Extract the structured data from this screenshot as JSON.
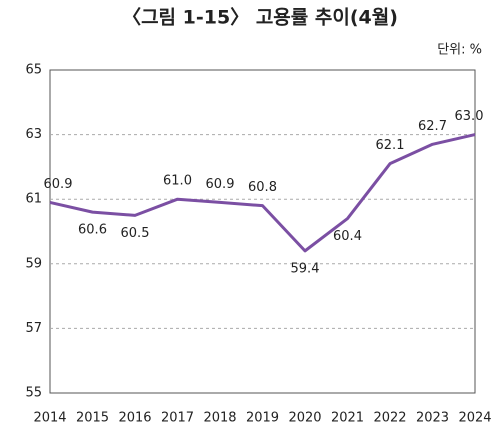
{
  "chart_data": {
    "type": "line",
    "title": "〈그림 1-15〉 고용률 추이(4월)",
    "unit": "단위: %",
    "categories": [
      "2014",
      "2015",
      "2016",
      "2017",
      "2018",
      "2019",
      "2020",
      "2021",
      "2022",
      "2023",
      "2024"
    ],
    "series": [
      {
        "name": "고용률",
        "color": "#7b4fa3",
        "values": [
          60.9,
          60.6,
          60.5,
          61.0,
          60.9,
          60.8,
          59.4,
          60.4,
          62.1,
          62.7,
          63.0
        ],
        "value_labels": [
          "60.9",
          "60.6",
          "60.5",
          "61.0",
          "60.9",
          "60.8",
          "59.4",
          "60.4",
          "62.1",
          "62.7",
          "63.0"
        ]
      }
    ],
    "ylim": [
      55,
      65
    ],
    "yticks": [
      55,
      57,
      59,
      61,
      63,
      65
    ],
    "grid": true
  }
}
